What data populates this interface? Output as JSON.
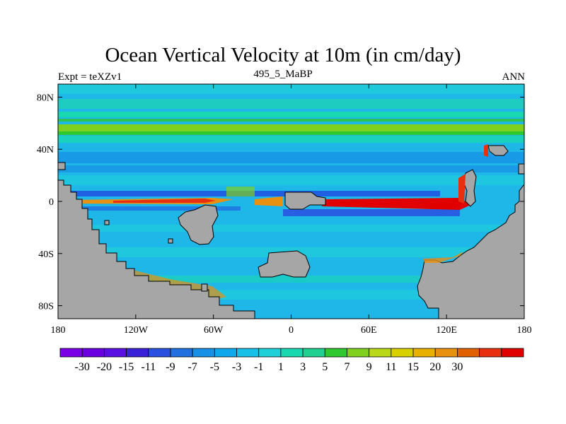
{
  "title": "Ocean Vertical Velocity at 10m (in cm/day)",
  "left_label": "Expt = teXZv1",
  "center_label": "495_5_MaBP",
  "right_label": "ANN",
  "map": {
    "lon_range": [
      -180,
      180
    ],
    "lat_range": [
      -90,
      90
    ],
    "land_color": "#a6a6a6",
    "ocean_base_color": "#1fb6e8",
    "x_ticks": [
      {
        "value": -180,
        "label": "180"
      },
      {
        "value": -120,
        "label": "120W"
      },
      {
        "value": -60,
        "label": "60W"
      },
      {
        "value": 0,
        "label": "0"
      },
      {
        "value": 60,
        "label": "60E"
      },
      {
        "value": 120,
        "label": "120E"
      },
      {
        "value": 180,
        "label": "180"
      }
    ],
    "y_ticks": [
      {
        "value": 80,
        "label": "80N"
      },
      {
        "value": 40,
        "label": "40N"
      },
      {
        "value": 0,
        "label": "0"
      },
      {
        "value": -40,
        "label": "40S"
      },
      {
        "value": -80,
        "label": "80S"
      }
    ]
  },
  "colorbar": {
    "colors": [
      "#7a00e6",
      "#6a00e0",
      "#5a10e0",
      "#3a22d8",
      "#2a50e0",
      "#2070e0",
      "#1890e6",
      "#10a8ec",
      "#18c0e8",
      "#20d0d8",
      "#18d8b0",
      "#20d090",
      "#30c830",
      "#80d020",
      "#b8d818",
      "#d8d000",
      "#e8b000",
      "#e89010",
      "#e06000",
      "#e83010",
      "#e00000"
    ],
    "labels": [
      "-30",
      "-20",
      "-15",
      "-11",
      "-9",
      "-7",
      "-5",
      "-3",
      "-1",
      "1",
      "3",
      "5",
      "7",
      "9",
      "11",
      "15",
      "20",
      "30"
    ]
  }
}
